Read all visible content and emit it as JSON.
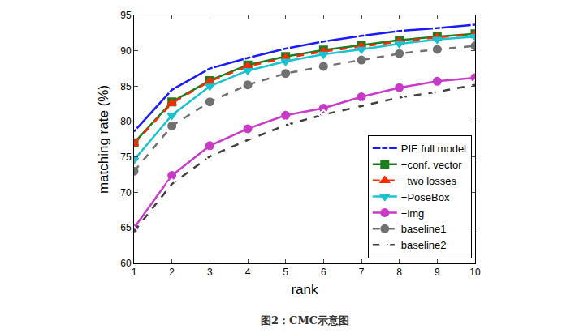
{
  "chart_data": {
    "type": "line",
    "caption": "图2：CMC示意图",
    "x_label": "rank",
    "y_label": "matching rate (%)",
    "x": [
      1,
      2,
      3,
      4,
      5,
      6,
      7,
      8,
      9,
      10
    ],
    "xlim": [
      1,
      10
    ],
    "xticks": [
      1,
      2,
      3,
      4,
      5,
      6,
      7,
      8,
      9,
      10
    ],
    "ylim": [
      60,
      95
    ],
    "yticks": [
      60,
      65,
      70,
      75,
      80,
      85,
      90,
      95
    ],
    "grid": false,
    "legend": "lower right",
    "series": [
      {
        "name": "PIE full model",
        "color": "#1a1aff",
        "marker": "circle-open",
        "line_style": "solid",
        "values": [
          78.6,
          84.5,
          87.5,
          89.0,
          90.3,
          91.3,
          92.1,
          92.8,
          93.2,
          93.7
        ]
      },
      {
        "name": "−conf. vector",
        "color": "#1e7d1e",
        "marker": "square",
        "line_style": "solid",
        "values": [
          77.0,
          82.8,
          85.8,
          88.0,
          89.2,
          90.1,
          90.8,
          91.5,
          92.0,
          92.4
        ]
      },
      {
        "name": "−two losses",
        "color": "#ff2a00",
        "marker": "triangle-up",
        "line_style": "dash",
        "values": [
          76.9,
          82.6,
          85.7,
          87.8,
          89.0,
          89.9,
          90.6,
          91.3,
          91.9,
          92.3
        ]
      },
      {
        "name": "−PoseBox",
        "color": "#19c3cf",
        "marker": "triangle-down",
        "line_style": "solid",
        "values": [
          74.6,
          80.9,
          85.0,
          87.2,
          88.5,
          89.5,
          90.2,
          91.0,
          91.6,
          92.0
        ]
      },
      {
        "name": "−img",
        "color": "#c93ac9",
        "marker": "circle",
        "line_style": "solid",
        "values": [
          65.0,
          72.4,
          76.6,
          79.0,
          80.9,
          81.9,
          83.5,
          84.8,
          85.7,
          86.2
        ]
      },
      {
        "name": "baseline1",
        "color": "#707070",
        "marker": "circle",
        "line_style": "dash",
        "values": [
          73.0,
          79.4,
          82.8,
          85.2,
          86.8,
          87.8,
          88.7,
          89.6,
          90.2,
          90.7
        ]
      },
      {
        "name": "baseline2",
        "color": "#404040",
        "marker": "diamond-open",
        "line_style": "dash",
        "values": [
          64.5,
          71.2,
          75.1,
          77.4,
          79.5,
          81.0,
          82.2,
          83.4,
          84.2,
          85.2
        ]
      }
    ]
  }
}
